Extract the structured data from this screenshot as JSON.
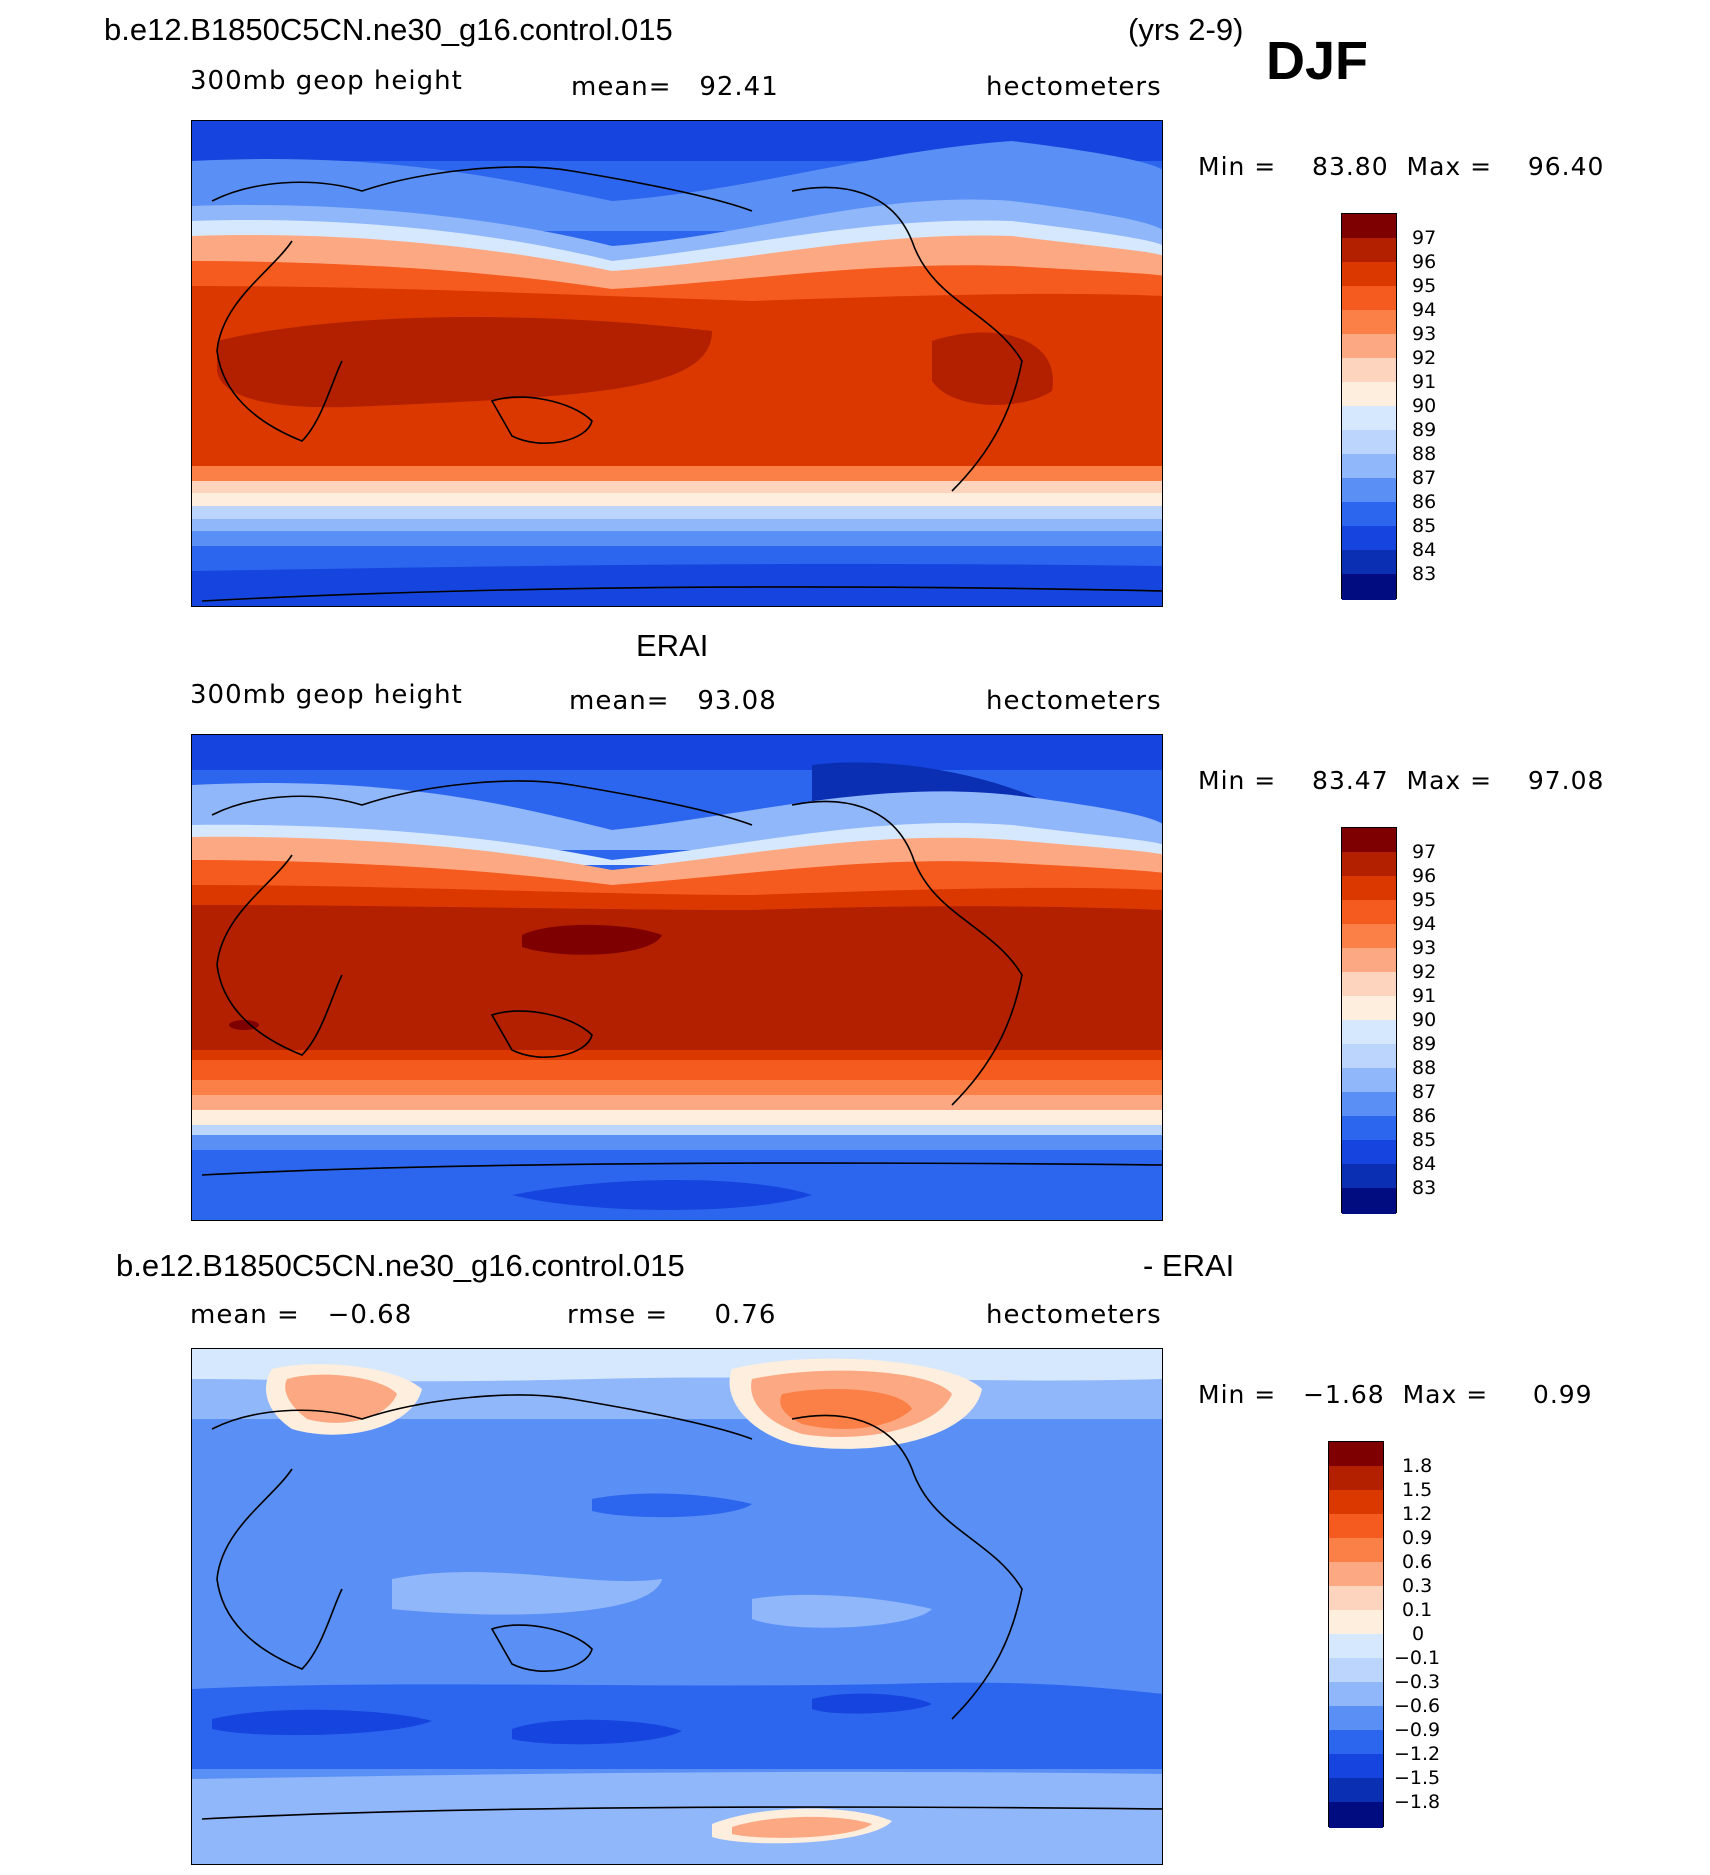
{
  "header": {
    "case_name": "b.e12.B1850C5CN.ne30_g16.control.015",
    "years": "(yrs 2-9)",
    "season": "DJF"
  },
  "panels": [
    {
      "id": "model",
      "title": "",
      "variable": "300mb geop height",
      "stat": "mean=   92.41",
      "units": "hectometers",
      "minmax": "Min =    83.80  Max =    96.40",
      "colorbar_labels": [
        "97",
        "96",
        "95",
        "94",
        "93",
        "92",
        "91",
        "90",
        "89",
        "88",
        "87",
        "86",
        "85",
        "84",
        "83"
      ]
    },
    {
      "id": "obs",
      "title": "ERAI",
      "variable": "300mb geop height",
      "stat": "mean=   93.08",
      "units": "hectometers",
      "minmax": "Min =    83.47  Max =    97.08",
      "colorbar_labels": [
        "97",
        "96",
        "95",
        "94",
        "93",
        "92",
        "91",
        "90",
        "89",
        "88",
        "87",
        "86",
        "85",
        "84",
        "83"
      ]
    },
    {
      "id": "diff",
      "title_left": "b.e12.B1850C5CN.ne30_g16.control.015",
      "title_right": "- ERAI",
      "stat_mean": "mean =   −0.68",
      "stat_rmse": "rmse =     0.76",
      "units": "hectometers",
      "minmax": "Min =   −1.68  Max =     0.99",
      "colorbar_labels": [
        "1.8",
        "1.5",
        "1.2",
        "0.9",
        "0.6",
        "0.3",
        "0.1",
        "0",
        "−0.1",
        "−0.3",
        "−0.6",
        "−0.9",
        "−1.2",
        "−1.5",
        "−1.8"
      ]
    }
  ],
  "palette": [
    "#7f0000",
    "#b22000",
    "#db3800",
    "#f55a1e",
    "#fb8047",
    "#fca983",
    "#fdd4bd",
    "#fdeede",
    "#d6e8fd",
    "#bcd5fc",
    "#91b7fb",
    "#5a90f5",
    "#2d66ee",
    "#1545de",
    "#0b2fb2",
    "#000c80"
  ]
}
